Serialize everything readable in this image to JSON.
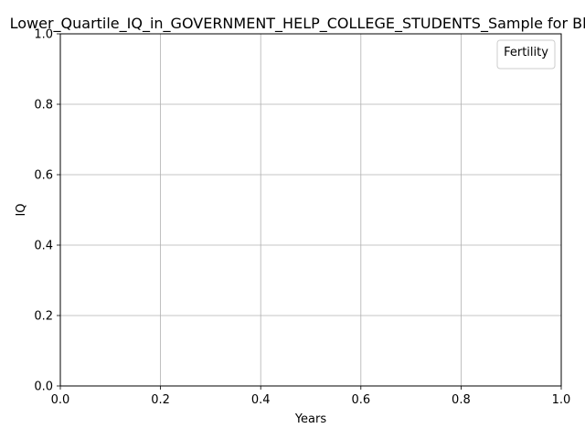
{
  "chart_data": {
    "type": "line",
    "title": "Lower_Quartile_IQ_in_GOVERNMENT_HELP_COLLEGE_STUDENTS_Sample for Black",
    "xlabel": "Years",
    "ylabel": "IQ",
    "xlim": [
      0.0,
      1.0
    ],
    "ylim": [
      0.0,
      1.0
    ],
    "x_ticks": [
      "0.0",
      "0.2",
      "0.4",
      "0.6",
      "0.8",
      "1.0"
    ],
    "y_ticks": [
      "0.0",
      "0.2",
      "0.4",
      "0.6",
      "0.8",
      "1.0"
    ],
    "grid": true,
    "legend": {
      "title": "Fertility",
      "placement": "upper right",
      "entries": []
    },
    "series": []
  }
}
